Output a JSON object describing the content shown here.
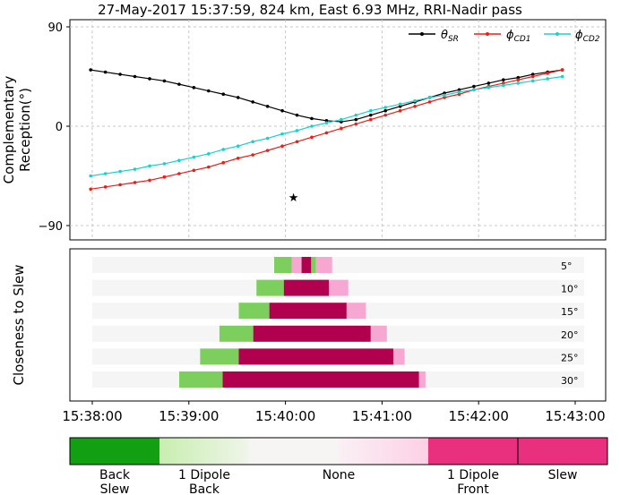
{
  "title": "27-May-2017 15:37:59, 824 km, East 6.93 MHz, RRI-Nadir pass",
  "colors": {
    "theta_sr": "#000000",
    "phi_cd1": "#e8201a",
    "phi_cd2": "#20d0c8",
    "back_slew": "#12a012",
    "one_dipole_back": "#7ccf5c",
    "one_dipole_back_light": "#c8eeb0",
    "none": "#f5f5f5",
    "one_dipole_front": "#f7a8d2",
    "slew": "#b0004e",
    "slew_cbar": "#e8307e"
  },
  "chart_data": [
    {
      "type": "line",
      "ylabel": "Complementary\nReception(°)",
      "ylim": [
        -100,
        100
      ],
      "yticks": [
        "90",
        "0",
        "−90"
      ],
      "ytick_values": [
        90,
        0,
        -90
      ],
      "x_time_range": [
        "15:37:59",
        "15:42:52"
      ],
      "grid": true,
      "legend_position": "top-right",
      "legend": [
        "θSR",
        "ϕCD1",
        "ϕCD2"
      ],
      "star_marker": {
        "time": "15:40:05",
        "y": -65
      },
      "series": [
        {
          "name": "θSR",
          "key": "theta",
          "values": [
            51,
            49,
            47,
            45,
            43,
            41,
            38,
            35,
            32,
            29,
            26,
            22,
            18,
            14,
            10,
            7,
            5,
            4,
            6,
            10,
            14,
            18,
            22,
            26,
            30,
            33,
            36,
            39,
            42,
            44,
            47,
            49,
            51
          ]
        },
        {
          "name": "ϕCD1",
          "key": "cd1",
          "values": [
            -57,
            -55,
            -53,
            -51,
            -49,
            -46,
            -43,
            -40,
            -37,
            -33,
            -29,
            -26,
            -22,
            -18,
            -14,
            -10,
            -6,
            -2,
            2,
            6,
            10,
            14,
            18,
            22,
            26,
            29,
            33,
            36,
            39,
            42,
            45,
            48,
            51
          ]
        },
        {
          "name": "ϕCD2",
          "key": "cd2",
          "values": [
            -45,
            -43,
            -41,
            -39,
            -36,
            -34,
            -31,
            -28,
            -25,
            -21,
            -18,
            -14,
            -11,
            -7,
            -4,
            0,
            3,
            6,
            10,
            14,
            17,
            20,
            23,
            26,
            28,
            31,
            33,
            35,
            37,
            39,
            41,
            43,
            45
          ]
        }
      ]
    },
    {
      "type": "bar",
      "ylabel": "Closeness to Slew",
      "x_ticks": [
        "15:38:00",
        "15:39:00",
        "15:40:00",
        "15:41:00",
        "15:42:00",
        "15:43:00"
      ],
      "categories": [
        "5°",
        "10°",
        "15°",
        "20°",
        "25°",
        "30°"
      ],
      "rows": [
        {
          "label": "5°",
          "segments": [
            [
              "15:39:53",
              "15:40:04",
              "one_dipole_back"
            ],
            [
              "15:40:04",
              "15:40:10",
              "one_dipole_front"
            ],
            [
              "15:40:10",
              "15:40:16",
              "slew"
            ],
            [
              "15:40:16",
              "15:40:19",
              "one_dipole_back"
            ],
            [
              "15:40:19",
              "15:40:29",
              "one_dipole_front"
            ]
          ]
        },
        {
          "label": "10°",
          "segments": [
            [
              "15:39:42",
              "15:39:59",
              "one_dipole_back"
            ],
            [
              "15:39:59",
              "15:40:27",
              "slew"
            ],
            [
              "15:40:27",
              "15:40:39",
              "one_dipole_front"
            ]
          ]
        },
        {
          "label": "15°",
          "segments": [
            [
              "15:39:31",
              "15:39:50",
              "one_dipole_back"
            ],
            [
              "15:39:50",
              "15:40:38",
              "slew"
            ],
            [
              "15:40:38",
              "15:40:50",
              "one_dipole_front"
            ]
          ]
        },
        {
          "label": "20°",
          "segments": [
            [
              "15:39:19",
              "15:39:40",
              "one_dipole_back"
            ],
            [
              "15:39:40",
              "15:40:53",
              "slew"
            ],
            [
              "15:40:53",
              "15:41:03",
              "one_dipole_front"
            ]
          ]
        },
        {
          "label": "25°",
          "segments": [
            [
              "15:39:07",
              "15:39:31",
              "one_dipole_back"
            ],
            [
              "15:39:31",
              "15:41:07",
              "slew"
            ],
            [
              "15:41:07",
              "15:41:14",
              "one_dipole_front"
            ]
          ]
        },
        {
          "label": "30°",
          "segments": [
            [
              "15:38:54",
              "15:39:21",
              "one_dipole_back"
            ],
            [
              "15:39:21",
              "15:41:23",
              "slew"
            ],
            [
              "15:41:23",
              "15:41:27",
              "one_dipole_front"
            ]
          ]
        }
      ]
    },
    {
      "type": "colorbar",
      "labels": [
        "Back\nSlew",
        "1 Dipole\nBack",
        "None",
        "1 Dipole\nFront",
        "Slew"
      ]
    }
  ]
}
